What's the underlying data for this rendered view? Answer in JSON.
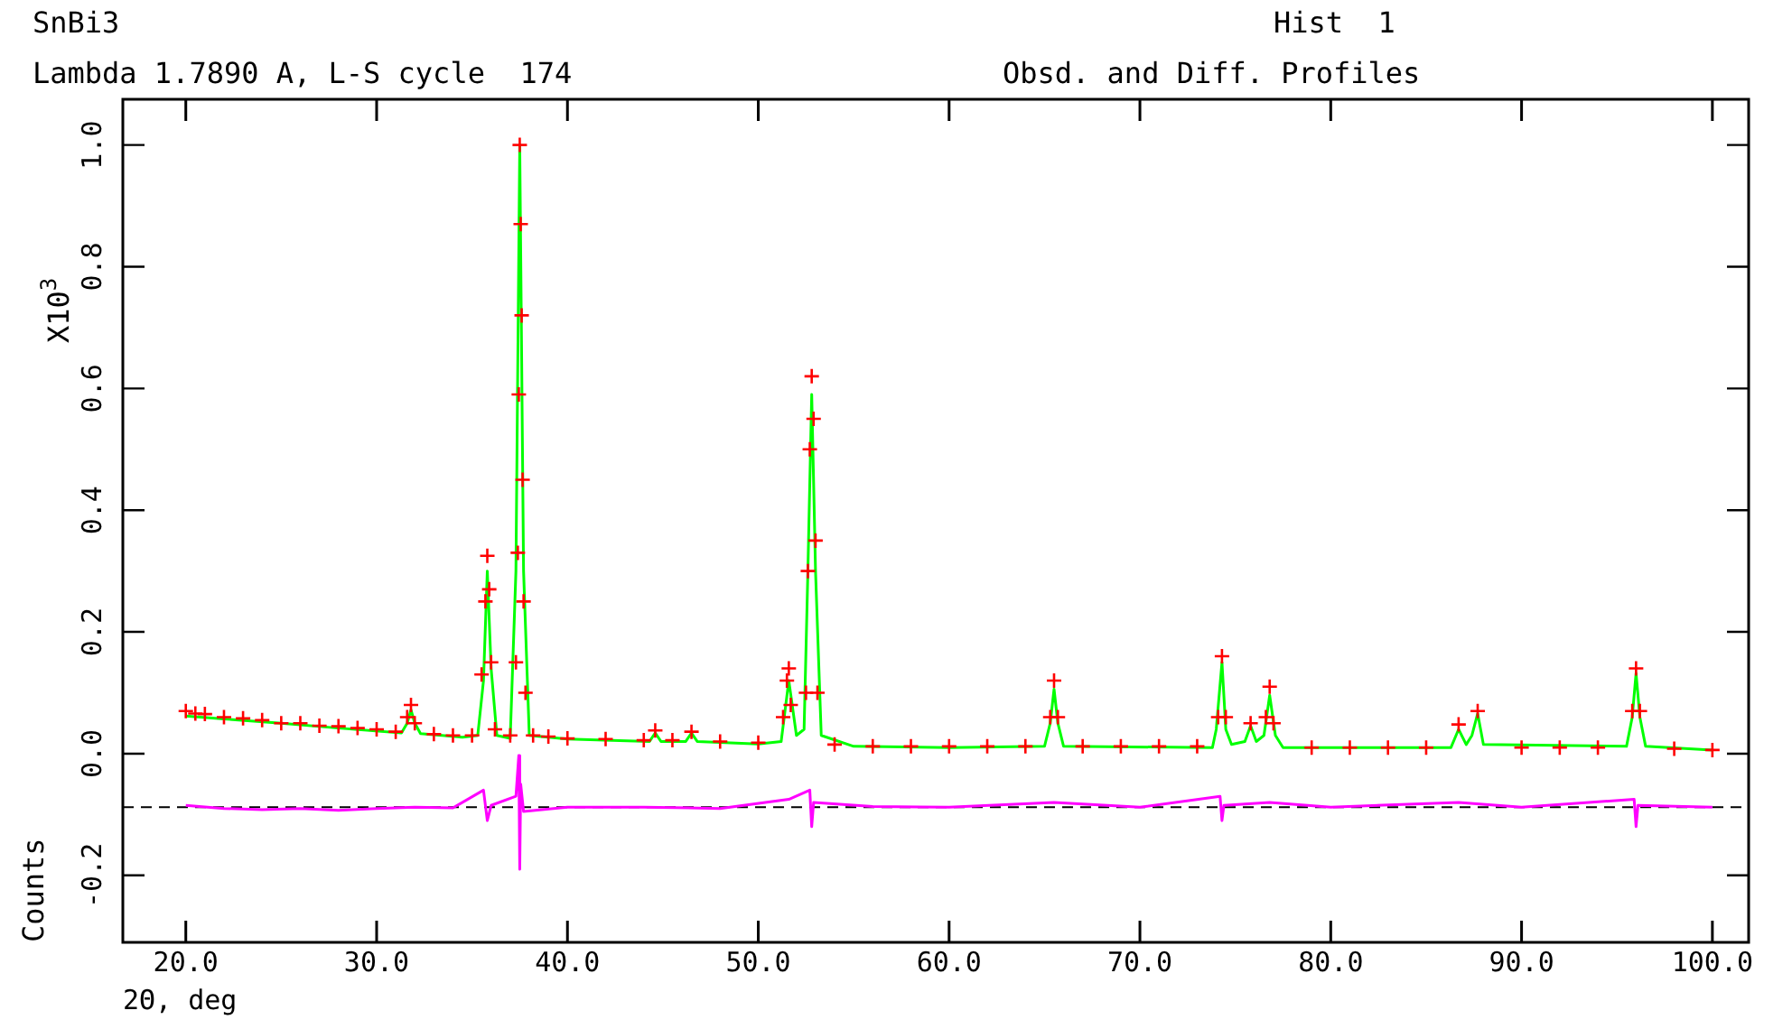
{
  "chart_data": {
    "type": "scatter",
    "title": "SnBi3",
    "subtitle": "Lambda 1.7890 A, L-S cycle  174",
    "xlabel": "2Θ, deg",
    "ylabel": "Counts",
    "annotations": [
      "Hist  1",
      "Obsd. and Diff. Profiles",
      "X10$^{3}$"
    ],
    "xlim": [
      16.7,
      101.9
    ],
    "ylim": [
      -0.31,
      1.075
    ],
    "xticks": [
      {
        "value": 20,
        "label": "20.0"
      },
      {
        "value": 30,
        "label": "30.0"
      },
      {
        "value": 40,
        "label": "40.0"
      },
      {
        "value": 50,
        "label": "50.0"
      },
      {
        "value": 60,
        "label": "60.0"
      },
      {
        "value": 70,
        "label": "70.0"
      },
      {
        "value": 80,
        "label": "80.0"
      },
      {
        "value": 90,
        "label": "90.0"
      },
      {
        "value": 100,
        "label": "100.0"
      }
    ],
    "yticks": [
      {
        "value": -0.2,
        "label": "-0.2"
      },
      {
        "value": 0,
        "label": "0.0"
      },
      {
        "value": 0.2,
        "label": "0.2"
      },
      {
        "value": 0.4,
        "label": "0.4"
      },
      {
        "value": 0.6,
        "label": "0.6"
      },
      {
        "value": 0.8,
        "label": "0.8"
      },
      {
        "value": 1,
        "label": "1.0"
      }
    ],
    "grid": false,
    "legend": false,
    "ref_lines": [
      {
        "axis": "y",
        "value": -0.088,
        "color": "#000000",
        "line_style": "dashed"
      }
    ],
    "series": [
      {
        "type": "scatter",
        "marker": "cross",
        "color": "#ff0000",
        "x": [
          20.0,
          20.5,
          21,
          22,
          23,
          24,
          25,
          26,
          27,
          28,
          29,
          30,
          31,
          31.6,
          31.8,
          32.0,
          33,
          34,
          35,
          35.5,
          35.7,
          35.8,
          35.9,
          36.0,
          36.2,
          37,
          37.3,
          37.4,
          37.45,
          37.5,
          37.55,
          37.6,
          37.65,
          37.7,
          37.8,
          38.2,
          39,
          40,
          42,
          44,
          44.6,
          45.5,
          46.5,
          48,
          50,
          51.3,
          51.5,
          51.6,
          51.7,
          52.5,
          52.6,
          52.7,
          52.8,
          52.9,
          53.0,
          53.1,
          54,
          56,
          58,
          60,
          62,
          64,
          65.3,
          65.5,
          65.7,
          67,
          69,
          71,
          73,
          74.1,
          74.3,
          74.5,
          75.8,
          76.6,
          76.8,
          77.0,
          79,
          81,
          83,
          85,
          86.7,
          87.7,
          90,
          92,
          94,
          95.8,
          96.0,
          96.2,
          98,
          100
        ],
        "values": [
          0.07,
          0.066,
          0.065,
          0.06,
          0.058,
          0.055,
          0.05,
          0.05,
          0.046,
          0.045,
          0.042,
          0.04,
          0.036,
          0.06,
          0.08,
          0.05,
          0.032,
          0.03,
          0.03,
          0.13,
          0.25,
          0.325,
          0.27,
          0.15,
          0.04,
          0.03,
          0.15,
          0.33,
          0.59,
          1.0,
          0.87,
          0.72,
          0.45,
          0.25,
          0.1,
          0.03,
          0.028,
          0.025,
          0.024,
          0.022,
          0.038,
          0.022,
          0.036,
          0.02,
          0.018,
          0.06,
          0.12,
          0.14,
          0.08,
          0.1,
          0.3,
          0.5,
          0.62,
          0.55,
          0.35,
          0.1,
          0.015,
          0.012,
          0.012,
          0.012,
          0.012,
          0.012,
          0.06,
          0.12,
          0.06,
          0.012,
          0.012,
          0.012,
          0.012,
          0.06,
          0.16,
          0.06,
          0.05,
          0.06,
          0.11,
          0.05,
          0.01,
          0.01,
          0.01,
          0.01,
          0.048,
          0.07,
          0.01,
          0.01,
          0.01,
          0.07,
          0.14,
          0.07,
          0.008,
          0.006
        ]
      },
      {
        "type": "line",
        "marker": "none",
        "color": "#00ff00",
        "x": [
          20.0,
          22,
          25,
          28,
          31.3,
          31.6,
          31.8,
          32.0,
          32.3,
          34.5,
          35.3,
          35.6,
          35.8,
          36.0,
          36.3,
          37.0,
          37.3,
          37.5,
          37.7,
          38.0,
          40,
          44.3,
          44.6,
          44.9,
          46.2,
          46.5,
          46.8,
          50,
          51.2,
          51.6,
          52.0,
          52.4,
          52.6,
          52.8,
          53.0,
          53.3,
          55,
          60,
          65.0,
          65.3,
          65.5,
          65.7,
          66.0,
          73.8,
          74.0,
          74.3,
          74.5,
          74.8,
          75.5,
          75.8,
          76.1,
          76.5,
          76.8,
          77.1,
          77.5,
          86.3,
          86.7,
          87.1,
          87.4,
          87.7,
          88.0,
          95.5,
          95.8,
          96.0,
          96.2,
          96.5,
          100
        ],
        "values": [
          0.062,
          0.057,
          0.05,
          0.042,
          0.034,
          0.05,
          0.072,
          0.05,
          0.033,
          0.027,
          0.03,
          0.12,
          0.3,
          0.14,
          0.03,
          0.025,
          0.3,
          1.0,
          0.3,
          0.03,
          0.024,
          0.02,
          0.034,
          0.02,
          0.02,
          0.034,
          0.02,
          0.016,
          0.02,
          0.12,
          0.03,
          0.04,
          0.3,
          0.59,
          0.3,
          0.03,
          0.012,
          0.01,
          0.012,
          0.05,
          0.106,
          0.05,
          0.012,
          0.01,
          0.04,
          0.15,
          0.04,
          0.015,
          0.02,
          0.046,
          0.02,
          0.03,
          0.096,
          0.03,
          0.01,
          0.01,
          0.04,
          0.015,
          0.03,
          0.066,
          0.015,
          0.012,
          0.06,
          0.132,
          0.06,
          0.012,
          0.006
        ]
      },
      {
        "type": "line",
        "marker": "none",
        "color": "#ff00ff",
        "x": [
          20.0,
          22,
          24,
          26,
          28,
          30,
          32,
          34,
          35.6,
          35.8,
          36.0,
          37.3,
          37.45,
          37.5,
          37.55,
          37.7,
          40,
          44,
          48,
          51.6,
          52.7,
          52.8,
          52.9,
          56,
          60,
          65.5,
          70,
          74.2,
          74.3,
          74.4,
          76.8,
          80,
          86.7,
          90,
          95.9,
          96.0,
          96.1,
          100
        ],
        "values": [
          -0.085,
          -0.09,
          -0.092,
          -0.09,
          -0.093,
          -0.09,
          -0.088,
          -0.089,
          -0.06,
          -0.11,
          -0.085,
          -0.07,
          -0.003,
          -0.19,
          -0.05,
          -0.095,
          -0.088,
          -0.088,
          -0.09,
          -0.075,
          -0.06,
          -0.12,
          -0.08,
          -0.087,
          -0.088,
          -0.08,
          -0.088,
          -0.07,
          -0.11,
          -0.085,
          -0.08,
          -0.088,
          -0.08,
          -0.088,
          -0.075,
          -0.12,
          -0.085,
          -0.088
        ]
      }
    ]
  }
}
